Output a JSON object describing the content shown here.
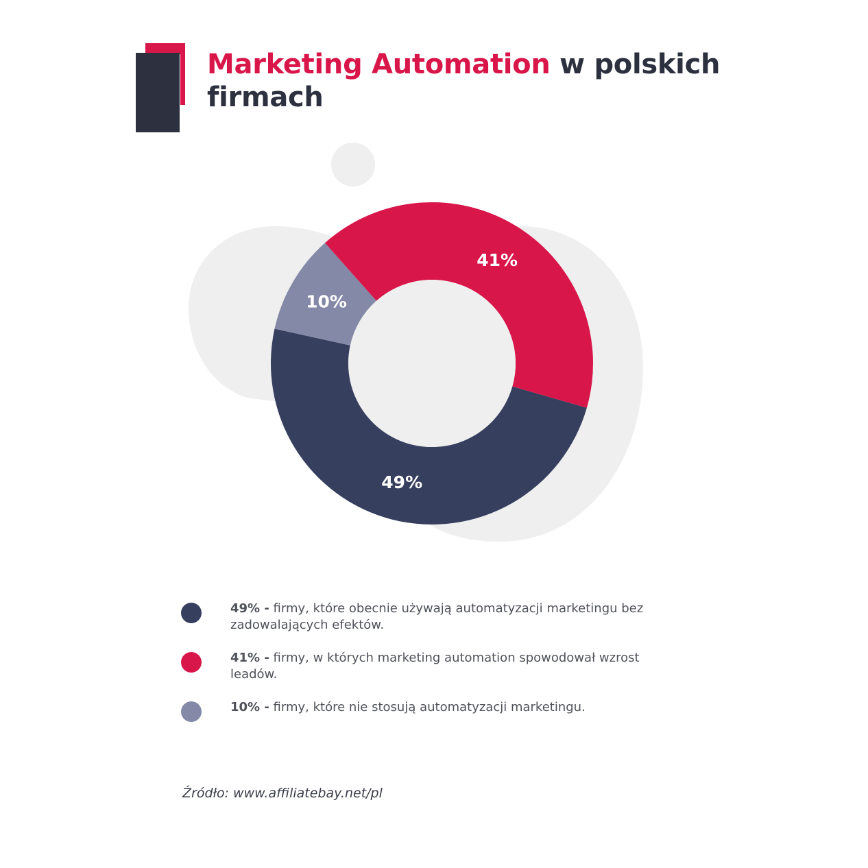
{
  "title": {
    "accent": "Marketing Automation",
    "rest": " w polskich firmach"
  },
  "chart_data": {
    "type": "pie",
    "variant": "donut",
    "slices": [
      {
        "label": "49%",
        "value": 49,
        "color": "#373f5f"
      },
      {
        "label": "10%",
        "value": 10,
        "color": "#8489a8"
      },
      {
        "label": "41%",
        "value": 41,
        "color": "#d9164a"
      }
    ]
  },
  "legend": [
    {
      "value": "49% -",
      "text": " firmy, które obecnie używają automatyzacji marketingu bez zadowalających efektów.",
      "color": "#373f5f"
    },
    {
      "value": "41% -",
      "text": " firmy, w których marketing automation spowodował wzrost leadów.",
      "color": "#d9164a"
    },
    {
      "value": "10% -",
      "text": " firmy, które nie stosują automatyzacji marketingu.",
      "color": "#8489a8"
    }
  ],
  "source": "Źródło: www.affiliatebay.net/pl"
}
